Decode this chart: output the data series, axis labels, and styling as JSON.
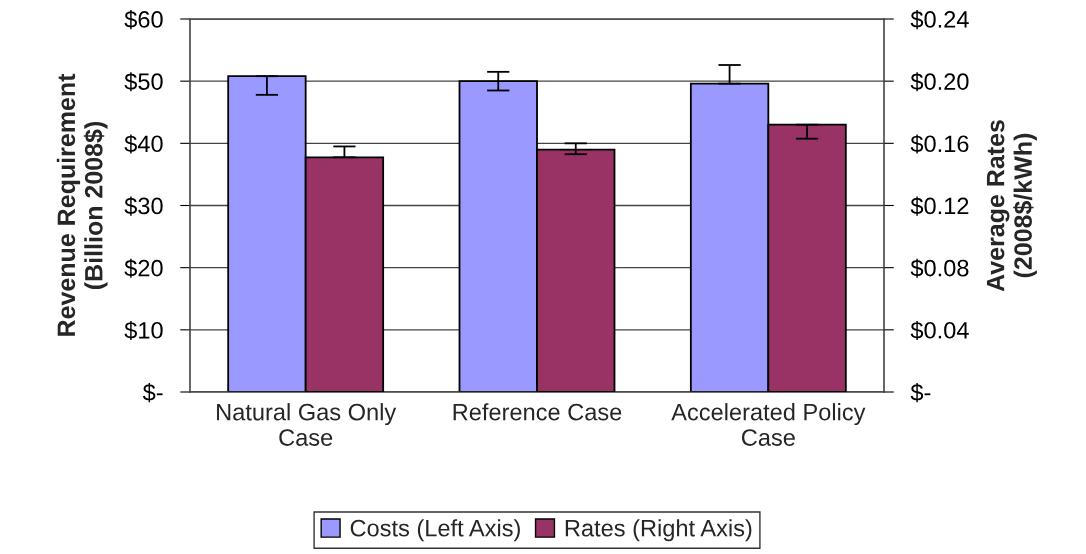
{
  "chart_data": {
    "type": "bar",
    "categories": [
      "Natural Gas Only\nCase",
      "Reference Case",
      "Accelerated Policy\nCase"
    ],
    "series": [
      {
        "name": "Costs (Left Axis)",
        "color": "#9999ff",
        "axis": "y",
        "values": [
          50.8,
          50.0,
          49.6
        ],
        "errors": [
          [
            47.8,
            50.8
          ],
          1.5,
          [
            49.6,
            52.6
          ]
        ]
      },
      {
        "name": "Rates (Right Axis)",
        "color": "#993366",
        "axis": "y2",
        "values": [
          0.151,
          0.156,
          0.172
        ],
        "errors": [
          [
            0.151,
            0.158
          ],
          [
            0.153,
            0.16
          ],
          [
            0.163,
            0.172
          ]
        ]
      }
    ],
    "ylabel": "Revenue Requirement\n(Billion 2008$)",
    "y2label": "Average Rates\n(2008$/kWh)",
    "ylim": [
      0,
      60
    ],
    "yticks": [
      {
        "value": 0,
        "label": "$-"
      },
      {
        "value": 10,
        "label": "$10"
      },
      {
        "value": 20,
        "label": "$20"
      },
      {
        "value": 30,
        "label": "$30"
      },
      {
        "value": 40,
        "label": "$40"
      },
      {
        "value": 50,
        "label": "$50"
      },
      {
        "value": 60,
        "label": "$60"
      }
    ],
    "y2lim": [
      0,
      0.24
    ],
    "y2ticks": [
      {
        "value": 0,
        "label": "$-"
      },
      {
        "value": 0.04,
        "label": "$0.04"
      },
      {
        "value": 0.08,
        "label": "$0.08"
      },
      {
        "value": 0.12,
        "label": "$0.12"
      },
      {
        "value": 0.16,
        "label": "$0.16"
      },
      {
        "value": 0.2,
        "label": "$0.20"
      },
      {
        "value": 0.24,
        "label": "$0.24"
      }
    ],
    "grid": "y",
    "legend": "bottom"
  }
}
